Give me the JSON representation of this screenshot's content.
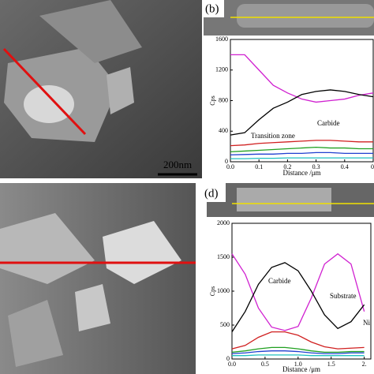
{
  "panels": {
    "b": "(b)",
    "d": "(d)",
    "scale_bar": "200nm"
  },
  "chart_data": [
    {
      "type": "line",
      "ylabel": "Cps",
      "xlabel": "Distance /μm",
      "annotations": [
        "Transition zone",
        "Carbide"
      ],
      "x": [
        0,
        0.05,
        0.1,
        0.15,
        0.2,
        0.25,
        0.3,
        0.35,
        0.4,
        0.45,
        0.5
      ],
      "xlim": [
        0,
        0.5
      ],
      "ylim": [
        0,
        1600
      ],
      "xticks": [
        {
          "value": 0,
          "label": "0.0"
        },
        0.1,
        0.2,
        0.3,
        0.4,
        {
          "value": 0.5,
          "label": "0."
        }
      ],
      "yticks": [
        0,
        400,
        800,
        1200,
        1600
      ],
      "series": [
        {
          "color": "#d020d0",
          "values": [
            1400,
            1400,
            1200,
            1000,
            900,
            820,
            780,
            800,
            820,
            870,
            900
          ]
        },
        {
          "color": "#000000",
          "values": [
            350,
            380,
            550,
            700,
            780,
            880,
            920,
            940,
            920,
            880,
            850
          ]
        },
        {
          "color": "#d02020",
          "values": [
            210,
            220,
            240,
            250,
            260,
            270,
            280,
            280,
            270,
            260,
            260
          ]
        },
        {
          "color": "#20a020",
          "values": [
            130,
            140,
            150,
            160,
            170,
            180,
            190,
            180,
            180,
            170,
            170
          ]
        },
        {
          "color": "#2040d0",
          "values": [
            90,
            95,
            100,
            100,
            110,
            110,
            120,
            120,
            110,
            110,
            110
          ]
        },
        {
          "color": "#20c0c0",
          "values": [
            40,
            40,
            45,
            45,
            50,
            50,
            50,
            50,
            50,
            50,
            50
          ]
        }
      ]
    },
    {
      "type": "line",
      "ylabel": "Cps",
      "xlabel": "Distance /μm",
      "annotations": [
        "Carbide",
        "Substrate",
        "Ni"
      ],
      "x": [
        0,
        0.2,
        0.4,
        0.6,
        0.8,
        1.0,
        1.2,
        1.4,
        1.6,
        1.8,
        2.0
      ],
      "xlim": [
        0,
        2.1
      ],
      "ylim": [
        0,
        2000
      ],
      "xticks": [
        {
          "value": 0,
          "label": "0.0"
        },
        0.5,
        {
          "value": 1,
          "label": "1.0"
        },
        1.5,
        {
          "value": 2,
          "label": "2."
        }
      ],
      "yticks": [
        0,
        500,
        1000,
        1500,
        2000
      ],
      "series": [
        {
          "color": "#d020d0",
          "values": [
            1550,
            1250,
            750,
            470,
            420,
            480,
            900,
            1400,
            1550,
            1400,
            700
          ]
        },
        {
          "color": "#000000",
          "values": [
            400,
            700,
            1100,
            1350,
            1420,
            1300,
            1000,
            650,
            450,
            550,
            800
          ]
        },
        {
          "color": "#d02020",
          "values": [
            150,
            200,
            320,
            400,
            400,
            350,
            250,
            180,
            150,
            160,
            170
          ]
        },
        {
          "color": "#20a020",
          "values": [
            100,
            120,
            150,
            170,
            170,
            150,
            120,
            100,
            100,
            110,
            110
          ]
        },
        {
          "color": "#2040d0",
          "values": [
            80,
            90,
            110,
            120,
            120,
            110,
            90,
            80,
            80,
            90,
            90
          ]
        },
        {
          "color": "#20c0c0",
          "values": [
            50,
            50,
            60,
            60,
            60,
            60,
            50,
            50,
            50,
            50,
            50
          ]
        }
      ]
    }
  ]
}
